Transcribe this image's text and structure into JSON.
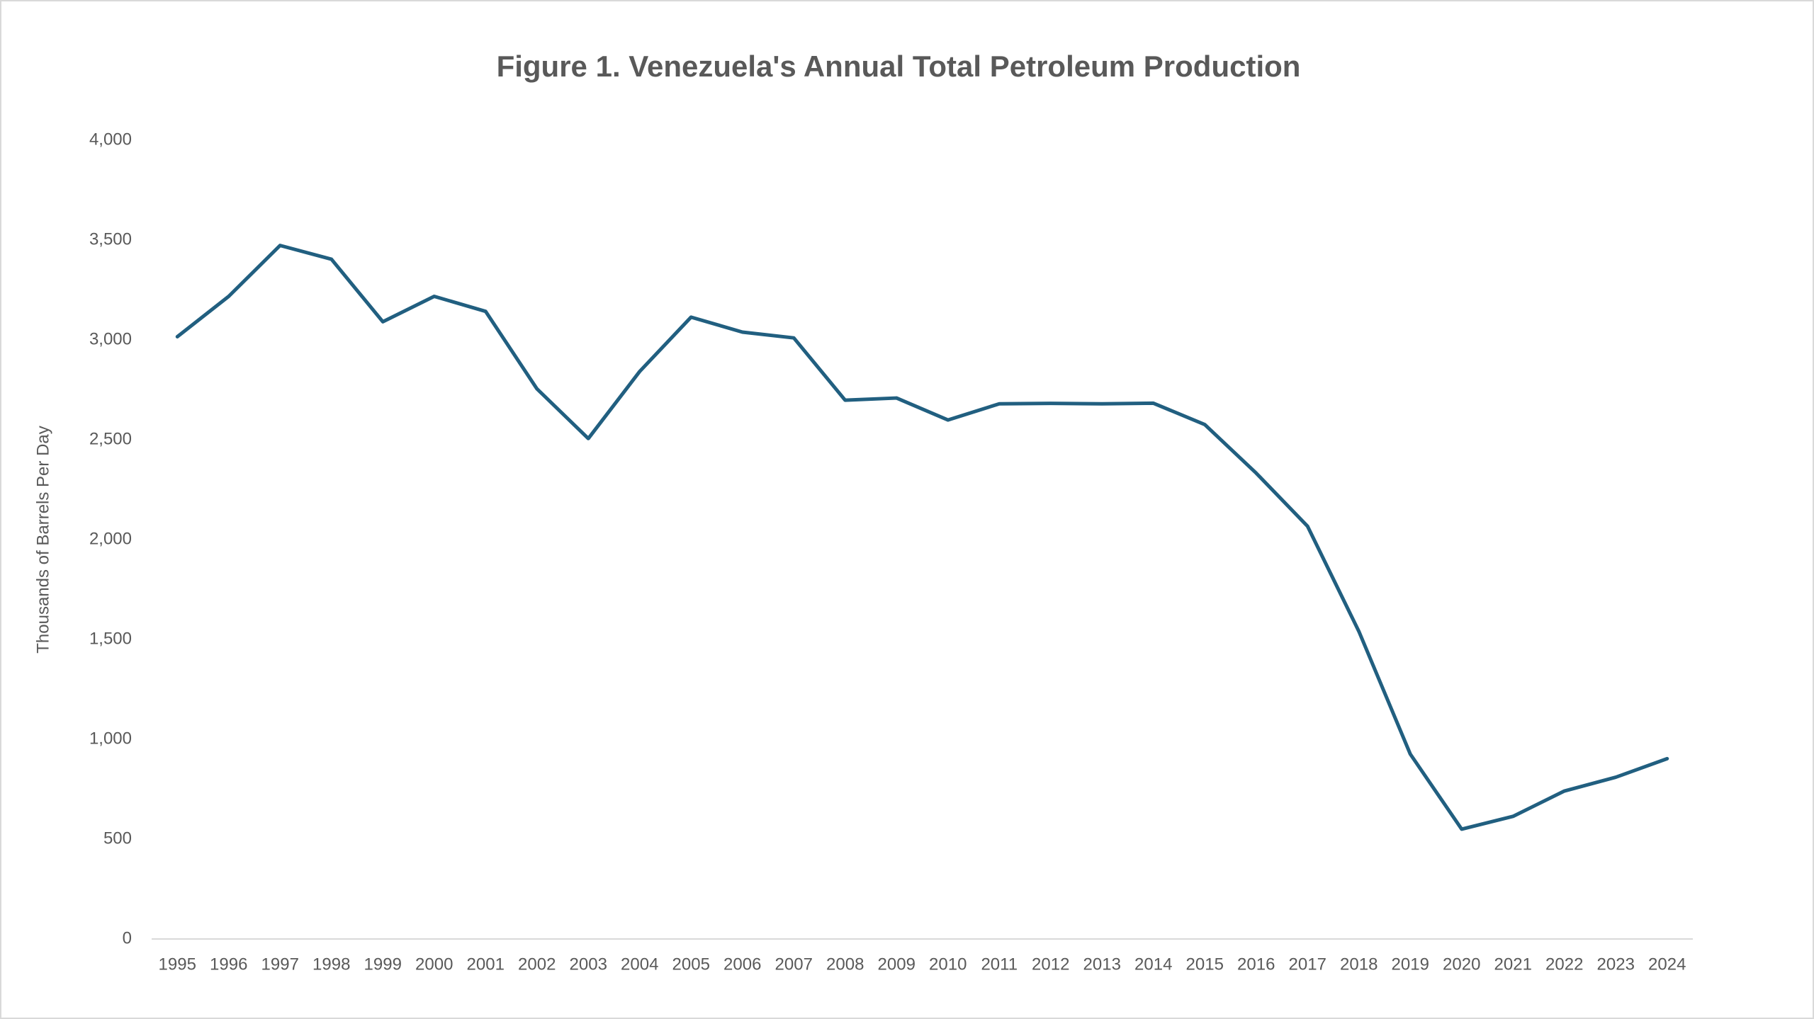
{
  "chart_data": {
    "type": "line",
    "title": "Figure 1. Venezuela's Annual Total Petroleum Production",
    "y_label": "Thousands of Barrels Per Day",
    "categories": [
      "1995",
      "1996",
      "1997",
      "1998",
      "1999",
      "2000",
      "2001",
      "2002",
      "2003",
      "2004",
      "2005",
      "2006",
      "2007",
      "2008",
      "2009",
      "2010",
      "2011",
      "2012",
      "2013",
      "2014",
      "2015",
      "2016",
      "2017",
      "2018",
      "2019",
      "2020",
      "2021",
      "2022",
      "2023",
      "2024"
    ],
    "series": [
      {
        "name": "Total Petroleum Production",
        "color": "#215f80",
        "values": [
          3016,
          3218,
          3473,
          3404,
          3091,
          3218,
          3143,
          2755,
          2506,
          2842,
          3114,
          3039,
          3010,
          2698,
          2709,
          2599,
          2680,
          2682,
          2680,
          2683,
          2576,
          2333,
          2067,
          1540,
          926,
          550,
          614,
          741,
          810,
          903
        ]
      }
    ],
    "ylim": [
      0,
      4000
    ],
    "yticks": [
      0,
      500,
      {
        "value": 1000,
        "label": "1,000"
      },
      {
        "value": 1500,
        "label": "1,500"
      },
      {
        "value": 2000,
        "label": "2,000"
      },
      {
        "value": 2500,
        "label": "2,500"
      },
      {
        "value": 3000,
        "label": "3,000"
      },
      {
        "value": 3500,
        "label": "3,500"
      },
      {
        "value": 4000,
        "label": "4,000"
      }
    ],
    "grid": false,
    "legend": false
  }
}
